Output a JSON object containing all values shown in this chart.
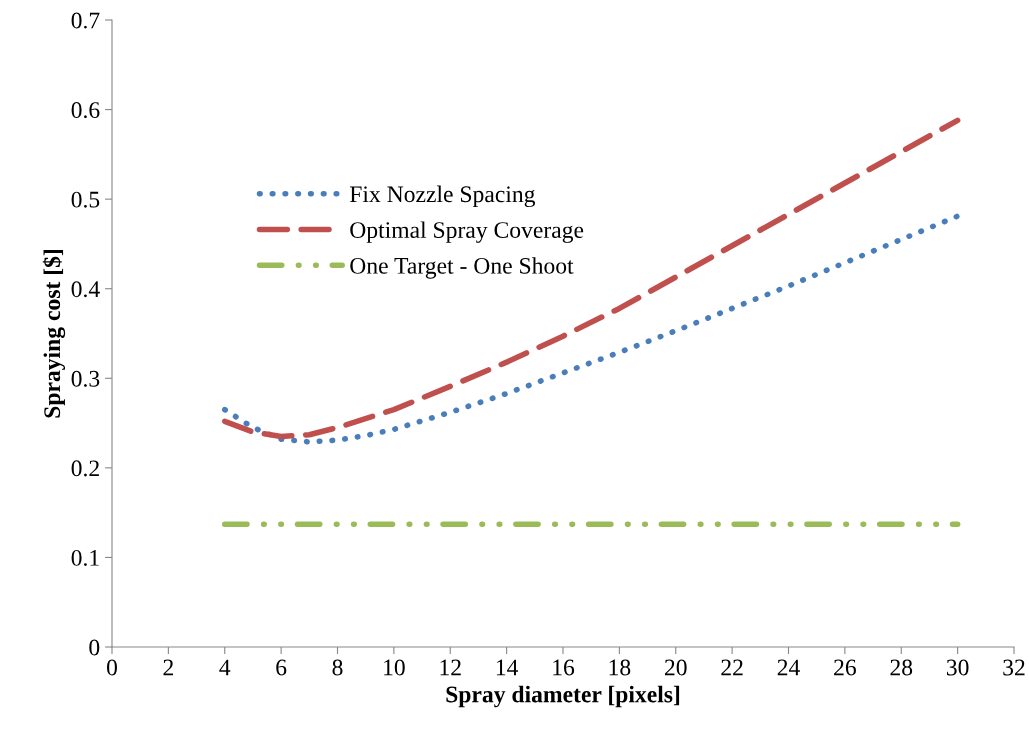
{
  "chart_data": {
    "type": "line",
    "xlabel": "Spray diameter [pixels]",
    "ylabel": "Spraying cost [$]",
    "xlim": [
      0,
      32
    ],
    "xticks": [
      0,
      2,
      4,
      6,
      8,
      10,
      12,
      14,
      16,
      18,
      20,
      22,
      24,
      26,
      28,
      30,
      32
    ],
    "ylim": [
      0,
      0.7
    ],
    "yticks": [
      0,
      0.1,
      0.2,
      0.3,
      0.4,
      0.5,
      0.6,
      0.7
    ],
    "grid": false,
    "legend": "top left",
    "marker": "none",
    "series": [
      {
        "name": "Fix Nozzle Spacing",
        "color": "#4a7ebb",
        "line_style": "dotted",
        "x": [
          4,
          5,
          6,
          7,
          8,
          9,
          10,
          12,
          14,
          16,
          18,
          20,
          22,
          24,
          26,
          28,
          30
        ],
        "values": [
          0.265,
          0.245,
          0.232,
          0.229,
          0.231,
          0.236,
          0.243,
          0.262,
          0.283,
          0.306,
          0.329,
          0.353,
          0.378,
          0.403,
          0.429,
          0.455,
          0.481
        ]
      },
      {
        "name": "Optimal Spray Coverage",
        "color": "#c0504d",
        "line_style": "dashed",
        "x": [
          4,
          5,
          6,
          7,
          8,
          10,
          12,
          14,
          16,
          18,
          20,
          22,
          24,
          26,
          28,
          30
        ],
        "values": [
          0.252,
          0.24,
          0.235,
          0.237,
          0.245,
          0.265,
          0.291,
          0.318,
          0.347,
          0.378,
          0.413,
          0.448,
          0.483,
          0.518,
          0.553,
          0.588
        ]
      },
      {
        "name": "One Target - One Shoot",
        "color": "#9bbb59",
        "line_style": "dashdot",
        "x": [
          4,
          30
        ],
        "values": [
          0.137,
          0.137
        ]
      }
    ]
  }
}
